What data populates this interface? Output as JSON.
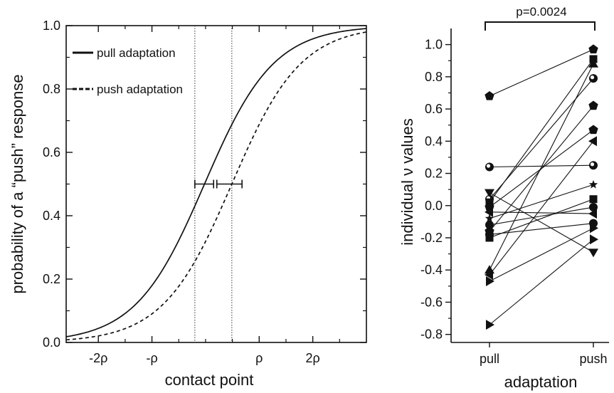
{
  "chart_data": [
    {
      "type": "line",
      "xlabel": "contact point",
      "ylabel": "probability of a “push” response",
      "xlim": [
        -2.6,
        3.0
      ],
      "ylim": [
        0,
        1.0
      ],
      "x_ticks": [
        {
          "value": -2,
          "label": "-2ρ"
        },
        {
          "value": -1,
          "label": "-ρ"
        },
        {
          "value": 1,
          "label": "ρ"
        },
        {
          "value": 2,
          "label": "2ρ"
        }
      ],
      "y_ticks": [
        {
          "value": 0.0,
          "label": "0.0"
        },
        {
          "value": 0.2,
          "label": "0.2"
        },
        {
          "value": 0.4,
          "label": "0.4"
        },
        {
          "value": 0.6,
          "label": "0.6"
        },
        {
          "value": 0.8,
          "label": "0.8"
        },
        {
          "value": 1.0,
          "label": "1.0"
        }
      ],
      "legend_position": "top-left",
      "series": [
        {
          "name": "pull adaptation",
          "style": "solid",
          "midpoint": -0.02,
          "slope": 1.55
        },
        {
          "name": "push adaptation",
          "style": "dashed",
          "midpoint": 0.49,
          "slope": 1.55
        }
      ],
      "reference_lines_x": [
        -0.2,
        0.49
      ],
      "error_bars_at_half": [
        {
          "series": "pull adaptation",
          "x": -0.02,
          "xmin": -0.2,
          "xmax": 0.15
        },
        {
          "series": "push adaptation",
          "x": 0.49,
          "xmin": 0.21,
          "xmax": 0.68
        }
      ]
    },
    {
      "type": "scatter",
      "xlabel": "adaptation",
      "ylabel": "individual ν values",
      "categories": [
        "pull",
        "push"
      ],
      "ylim": [
        -0.85,
        1.1
      ],
      "y_ticks": [
        -0.8,
        -0.6,
        -0.4,
        -0.2,
        0.0,
        0.2,
        0.4,
        0.6,
        0.8,
        1.0
      ],
      "y_tick_labels": [
        "-0.8",
        "-0.6",
        "-0.4",
        "-0.2",
        "0.0",
        "0.2",
        "0.4",
        "0.6",
        "0.8",
        "1.0"
      ],
      "significance": "p=0.0024",
      "pairs": [
        {
          "pull": 0.68,
          "push": 0.97,
          "marker": "pentagon"
        },
        {
          "pull": 0.24,
          "push": 0.25,
          "marker": "circle-half"
        },
        {
          "pull": 0.08,
          "push": -0.29,
          "marker": "triangle-down"
        },
        {
          "pull": 0.04,
          "push": 0.79,
          "marker": "circle-half"
        },
        {
          "pull": 0.02,
          "push": 0.91,
          "marker": "square"
        },
        {
          "pull": -0.01,
          "push": 0.47,
          "marker": "pentagon"
        },
        {
          "pull": -0.04,
          "push": -0.05,
          "marker": "triangle-left"
        },
        {
          "pull": -0.08,
          "push": 0.13,
          "marker": "star"
        },
        {
          "pull": -0.12,
          "push": -0.01,
          "marker": "circle"
        },
        {
          "pull": -0.16,
          "push": 0.62,
          "marker": "pentagon"
        },
        {
          "pull": -0.18,
          "push": -0.11,
          "marker": "circle"
        },
        {
          "pull": -0.2,
          "push": 0.04,
          "marker": "square"
        },
        {
          "pull": -0.4,
          "push": 0.88,
          "marker": "triangle-up"
        },
        {
          "pull": -0.43,
          "push": 0.4,
          "marker": "triangle-left"
        },
        {
          "pull": -0.47,
          "push": -0.14,
          "marker": "triangle-right"
        },
        {
          "pull": -0.74,
          "push": -0.21,
          "marker": "triangle-right"
        }
      ]
    }
  ]
}
